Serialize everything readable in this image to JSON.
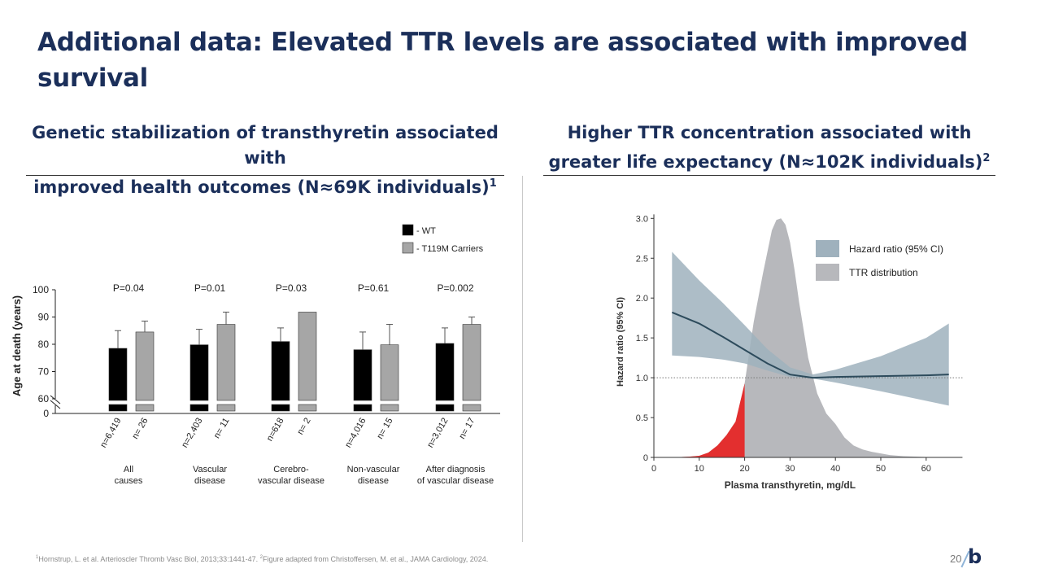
{
  "slide": {
    "title": "Additional data: Elevated TTR levels are associated with improved survival",
    "page_number": "20",
    "logo": "b",
    "footnote": {
      "ref1_num": "1",
      "ref1": "Hornstrup, L. et al. Arterioscler Thromb Vasc Biol, 2013;33:1441-47. ",
      "ref2_num": "2",
      "ref2": "Figure adapted from Christoffersen, M. et al., JAMA Cardiology, 2024."
    }
  },
  "left_panel": {
    "heading_line1": "Genetic stabilization of transthyretin associated with",
    "heading_line2": "improved health outcomes (N≈69K individuals)",
    "heading_sup": "1"
  },
  "right_panel": {
    "heading_line1": "Higher TTR concentration associated with",
    "heading_line2": "greater life expectancy (N≈102K individuals)",
    "heading_sup": "2"
  },
  "chart_data": [
    {
      "type": "bar",
      "title": "",
      "ylabel": "Age at death (years)",
      "ylim": [
        60,
        100
      ],
      "yticks": [
        "0",
        "60",
        "70",
        "80",
        "90",
        "100"
      ],
      "axis_break": true,
      "categories": [
        "All\ncauses",
        "Vascular\ndisease",
        "Cerebro-\nvascular disease",
        "Non-vascular\ndisease",
        "After diagnosis\nof vascular disease"
      ],
      "p_values": [
        "P=0.04",
        "P=0.01",
        "P=0.03",
        "P=0.61",
        "P=0.002"
      ],
      "series": [
        {
          "name": "- WT",
          "color": "#000000",
          "values": [
            78.5,
            79.8,
            81,
            78,
            80.3
          ],
          "error_upper": [
            85,
            85.5,
            86,
            84.5,
            86
          ],
          "counts": [
            "n=6,419",
            "n=2,403",
            "n=618",
            "n=4,016",
            "n=3,012"
          ]
        },
        {
          "name": "- T119M Carriers",
          "color": "#a6a6a6",
          "values": [
            84.5,
            87.3,
            91.8,
            79.8,
            87.3
          ],
          "error_upper": [
            88.5,
            91.8,
            null,
            87.3,
            90
          ],
          "counts": [
            "n= 26",
            "n= 11",
            "n= 2",
            "n= 15",
            "n= 17"
          ]
        }
      ]
    },
    {
      "type": "area",
      "xlabel": "Plasma transthyretin, mg/dL",
      "ylabel": "Hazard ratio (95% CI)",
      "xlim": [
        0,
        65
      ],
      "ylim": [
        0,
        3.0
      ],
      "xticks": [
        0,
        10,
        20,
        30,
        40,
        50,
        60
      ],
      "yticks": [
        0,
        0.5,
        1.0,
        1.5,
        2.0,
        2.5,
        3.0
      ],
      "ytick_labels": [
        "0",
        "0.5",
        "1.0",
        "1.5",
        "2.0",
        "2.5",
        "3.0"
      ],
      "reference_line": 1.0,
      "highlight_below_x": 20,
      "colors": {
        "ci": "#9fb1bd",
        "line": "#2d4b5c",
        "dist": "#b7b8bc",
        "low": "#e32f2f"
      },
      "legend": [
        "Hazard ratio (95% CI)",
        "TTR distribution"
      ],
      "series": [
        {
          "name": "Hazard ratio",
          "x": [
            4,
            10,
            15,
            20,
            25,
            30,
            35,
            40,
            50,
            60,
            65
          ],
          "y": [
            1.82,
            1.68,
            1.52,
            1.35,
            1.18,
            1.04,
            1.0,
            1.01,
            1.02,
            1.03,
            1.04
          ]
        },
        {
          "name": "95% CI lower",
          "x": [
            4,
            10,
            15,
            20,
            25,
            30,
            35,
            40,
            50,
            60,
            65
          ],
          "y": [
            1.28,
            1.26,
            1.23,
            1.18,
            1.09,
            1.01,
            0.99,
            0.94,
            0.83,
            0.71,
            0.65
          ]
        },
        {
          "name": "95% CI upper",
          "x": [
            4,
            10,
            15,
            20,
            25,
            30,
            35,
            40,
            50,
            60,
            65
          ],
          "y": [
            2.58,
            2.22,
            1.95,
            1.66,
            1.36,
            1.13,
            1.04,
            1.1,
            1.27,
            1.5,
            1.68
          ]
        },
        {
          "name": "TTR distribution",
          "x": [
            4,
            8,
            10,
            12,
            14,
            16,
            18,
            20,
            22,
            24,
            26,
            27,
            28,
            29,
            30,
            31,
            32,
            34,
            36,
            38,
            40,
            42,
            44,
            46,
            48,
            50,
            52,
            55,
            60,
            65
          ],
          "y": [
            0,
            0.01,
            0.02,
            0.06,
            0.15,
            0.28,
            0.45,
            0.93,
            1.7,
            2.3,
            2.85,
            2.98,
            3.0,
            2.92,
            2.7,
            2.35,
            1.95,
            1.25,
            0.8,
            0.55,
            0.42,
            0.25,
            0.15,
            0.1,
            0.07,
            0.05,
            0.03,
            0.015,
            0.005,
            0
          ]
        }
      ]
    }
  ]
}
